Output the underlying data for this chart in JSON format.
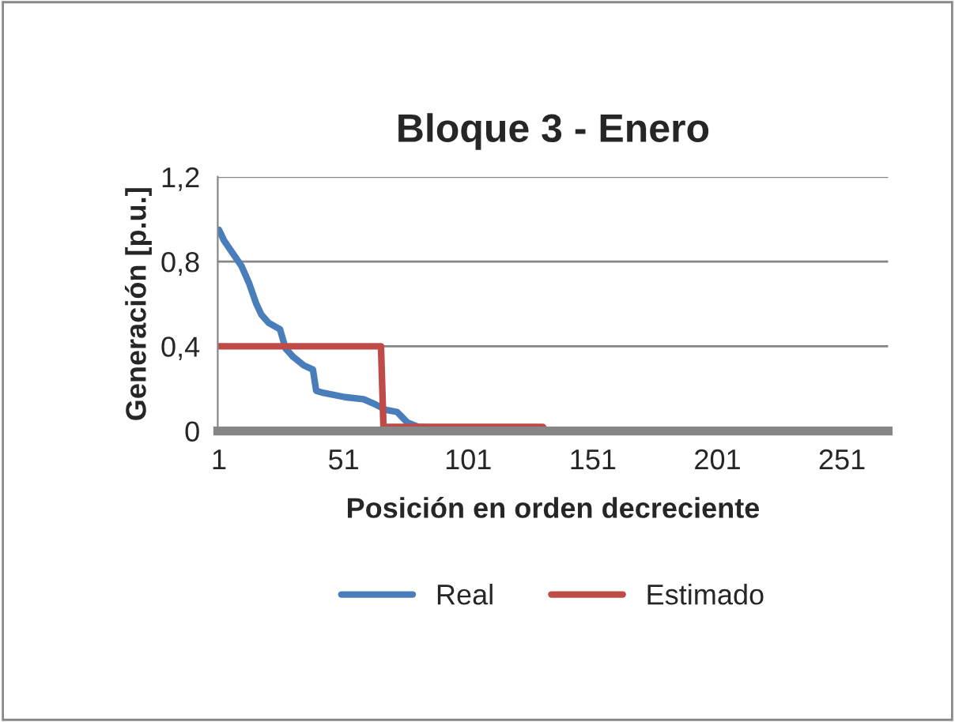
{
  "chart_data": {
    "type": "line",
    "title": "Bloque 3 - Enero",
    "xlabel": "Posición en orden decreciente",
    "ylabel": "Generación [p.u.]",
    "series": [
      {
        "name": "Real",
        "color": "#4a7ebb",
        "x": [
          1,
          3,
          10,
          13,
          16,
          18,
          21,
          25.5,
          27.7,
          30.8,
          35,
          38.7,
          40,
          43,
          51.6,
          59,
          63,
          68,
          72.5,
          76.6,
          81,
          101.6
        ],
        "values": [
          0.95,
          0.9,
          0.78,
          0.7,
          0.6,
          0.55,
          0.51,
          0.48,
          0.39,
          0.35,
          0.31,
          0.29,
          0.19,
          0.18,
          0.16,
          0.15,
          0.13,
          0.1,
          0.09,
          0.04,
          0.02,
          0.01
        ]
      },
      {
        "name": "Estimado",
        "color": "#be4b48",
        "x": [
          1,
          66,
          67,
          131,
          132,
          268
        ],
        "values": [
          0.4,
          0.4,
          0.02,
          0.02,
          0,
          0
        ]
      }
    ],
    "xlim": [
      0.5,
      269.5
    ],
    "xticks": [
      1,
      51,
      101,
      151,
      201,
      251
    ],
    "ylim": [
      0,
      1.2
    ],
    "yticks": [
      0,
      {
        "value": 0.4,
        "label": "0,4"
      },
      {
        "value": 0.8,
        "label": "0,8"
      },
      {
        "value": 1.2,
        "label": "1,2"
      }
    ],
    "grid": "y",
    "legend": "bottom",
    "marker": "none",
    "line_style": "solid"
  }
}
